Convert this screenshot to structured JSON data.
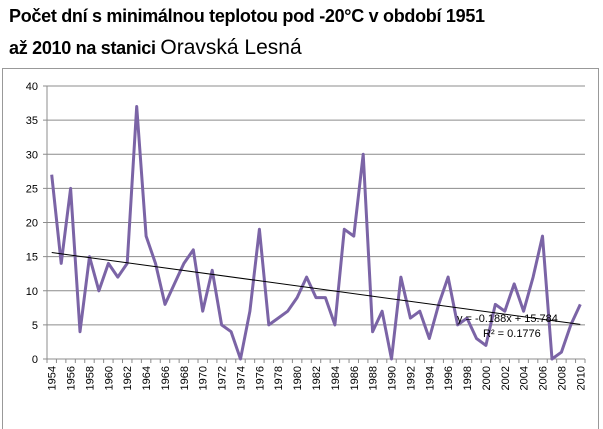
{
  "title": {
    "line1": "Počet dní  s minimálnou teplotou pod -20°C v období 1951",
    "line2": "až 2010 na stanici ",
    "station": "Oravská Lesná"
  },
  "chart_data": {
    "type": "line",
    "title": "Počet dní  s minimálnou teplotou pod -20°C v období 1951 až 2010 na stanici Oravská Lesná",
    "xlabel": "",
    "ylabel": "",
    "ylim": [
      0,
      40
    ],
    "yticks": [
      "0",
      "5",
      "10",
      "15",
      "20",
      "25",
      "30",
      "35",
      "40"
    ],
    "grid": true,
    "x": [
      1954,
      1955,
      1956,
      1957,
      1958,
      1959,
      1960,
      1961,
      1962,
      1963,
      1964,
      1965,
      1966,
      1967,
      1968,
      1969,
      1970,
      1971,
      1972,
      1973,
      1974,
      1975,
      1976,
      1977,
      1978,
      1979,
      1980,
      1981,
      1982,
      1983,
      1984,
      1985,
      1986,
      1987,
      1988,
      1989,
      1990,
      1991,
      1992,
      1993,
      1994,
      1995,
      1996,
      1997,
      1998,
      1999,
      2000,
      2001,
      2002,
      2003,
      2004,
      2005,
      2006,
      2007,
      2008,
      2009,
      2010
    ],
    "xticklabels": [
      "1954",
      "1956",
      "1958",
      "1960",
      "1962",
      "1964",
      "1966",
      "1968",
      "1970",
      "1972",
      "1974",
      "1976",
      "1978",
      "1980",
      "1982",
      "1984",
      "1986",
      "1988",
      "1990",
      "1992",
      "1994",
      "1996",
      "1998",
      "2000",
      "2002",
      "2004",
      "2006",
      "2008",
      "2010"
    ],
    "series": [
      {
        "name": "Počet dní",
        "color": "#7b64a6",
        "values": [
          27,
          14,
          25,
          4,
          15,
          10,
          14,
          12,
          14,
          37,
          18,
          14,
          8,
          11,
          14,
          16,
          7,
          13,
          5,
          4,
          0,
          7,
          19,
          5,
          6,
          7,
          9,
          12,
          9,
          9,
          5,
          19,
          18,
          30,
          4,
          7,
          0,
          12,
          6,
          7,
          3,
          8,
          12,
          5,
          6,
          3,
          2,
          8,
          7,
          11,
          7,
          12,
          18,
          0,
          1,
          5,
          8
        ]
      }
    ],
    "trendline": {
      "type": "linear",
      "slope": -0.188,
      "intercept": 15.784,
      "color": "#000000",
      "equation": "y = -0.188x + 15.784",
      "r2": "R² = 0.1776"
    }
  }
}
